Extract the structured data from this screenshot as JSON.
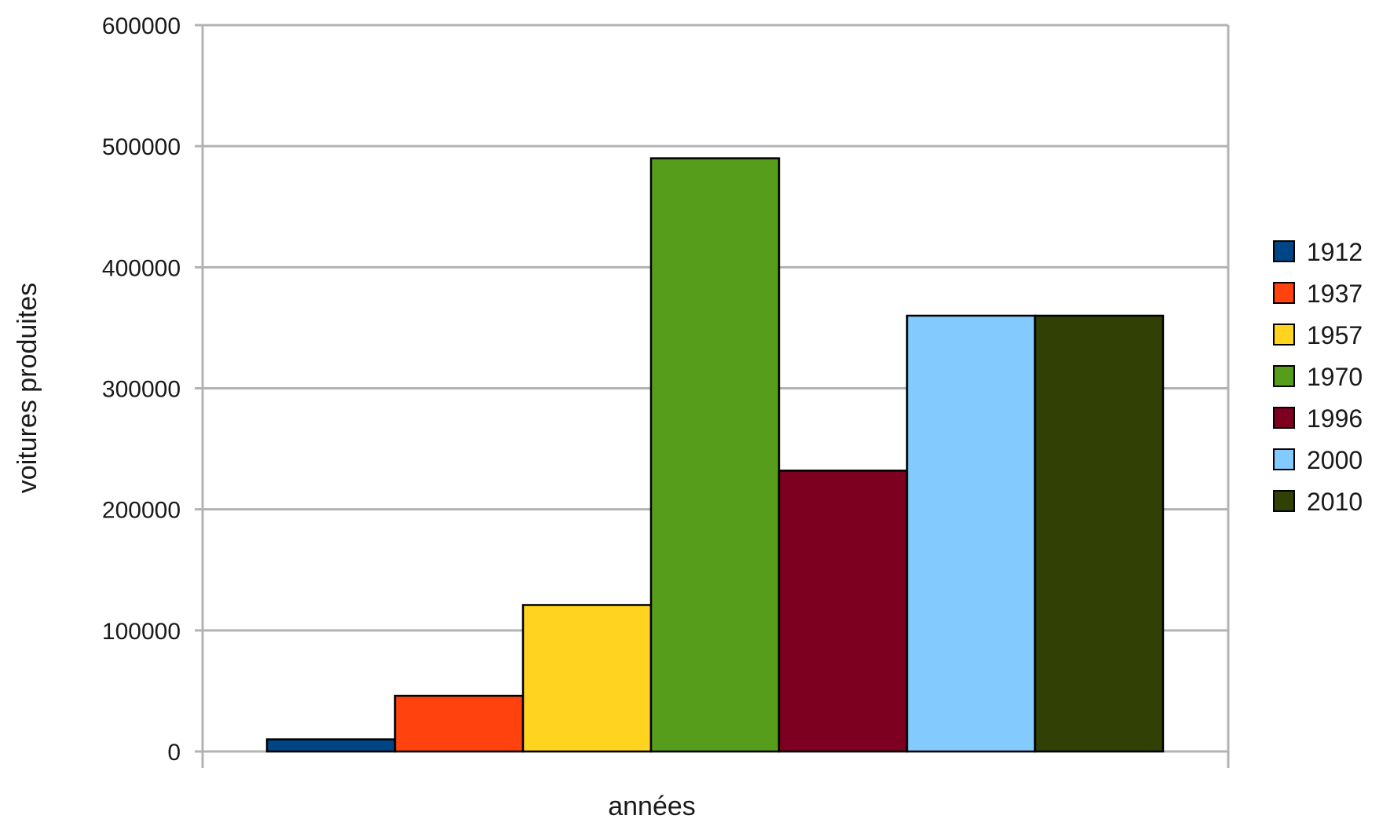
{
  "chart_data": {
    "type": "bar",
    "title": "",
    "xlabel": "années",
    "ylabel": "voitures produites",
    "ylim": [
      0,
      600000
    ],
    "yticks": [
      0,
      100000,
      200000,
      300000,
      400000,
      500000,
      600000
    ],
    "ytick_labels": [
      "0",
      "100000",
      "200000",
      "300000",
      "400000",
      "500000",
      "600000"
    ],
    "grid": true,
    "legend_position": "right",
    "categories": [
      ""
    ],
    "series": [
      {
        "name": "1912",
        "values": [
          10000
        ],
        "color": "#004586"
      },
      {
        "name": "1937",
        "values": [
          46000
        ],
        "color": "#ff420e"
      },
      {
        "name": "1957",
        "values": [
          121000
        ],
        "color": "#ffd320"
      },
      {
        "name": "1970",
        "values": [
          490000
        ],
        "color": "#579d1c"
      },
      {
        "name": "1996",
        "values": [
          232000
        ],
        "color": "#7e0021"
      },
      {
        "name": "2000",
        "values": [
          360000
        ],
        "color": "#83caff"
      },
      {
        "name": "2010",
        "values": [
          360000
        ],
        "color": "#314004"
      }
    ]
  }
}
